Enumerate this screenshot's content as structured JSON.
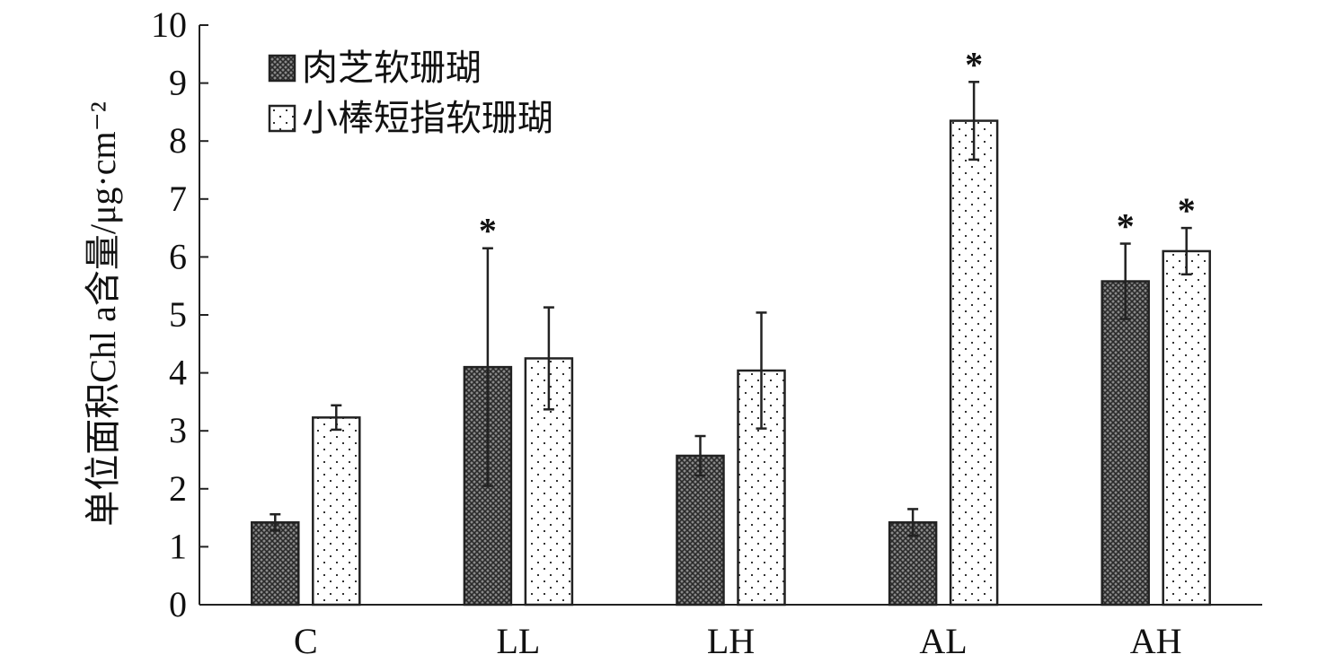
{
  "chart_data": {
    "type": "bar",
    "categories": [
      "C",
      "LL",
      "LH",
      "AL",
      "AH"
    ],
    "series": [
      {
        "name": "肉芝软珊瑚",
        "values": [
          1.42,
          4.1,
          2.57,
          1.42,
          5.58
        ],
        "error": [
          0.14,
          2.05,
          0.34,
          0.23,
          0.65
        ],
        "significant": [
          false,
          true,
          false,
          false,
          true
        ],
        "pattern": "crosshatch"
      },
      {
        "name": "小棒短指软珊瑚",
        "values": [
          3.23,
          4.25,
          4.04,
          8.35,
          6.1
        ],
        "error": [
          0.21,
          0.88,
          1.0,
          0.67,
          0.4
        ],
        "significant": [
          false,
          false,
          false,
          true,
          true
        ],
        "pattern": "dots"
      }
    ],
    "significance_marker": "*",
    "ylabel": "单位面积Chl a含量/μg·cm⁻²",
    "xlabel": "",
    "ylim": [
      0,
      10
    ],
    "yticks": [
      0,
      1,
      2,
      3,
      4,
      5,
      6,
      7,
      8,
      9,
      10
    ],
    "grid": false,
    "legend_position": "top-left",
    "colors": {
      "axis": "#222222",
      "bar_stroke": "#222222",
      "error": "#222222"
    }
  }
}
